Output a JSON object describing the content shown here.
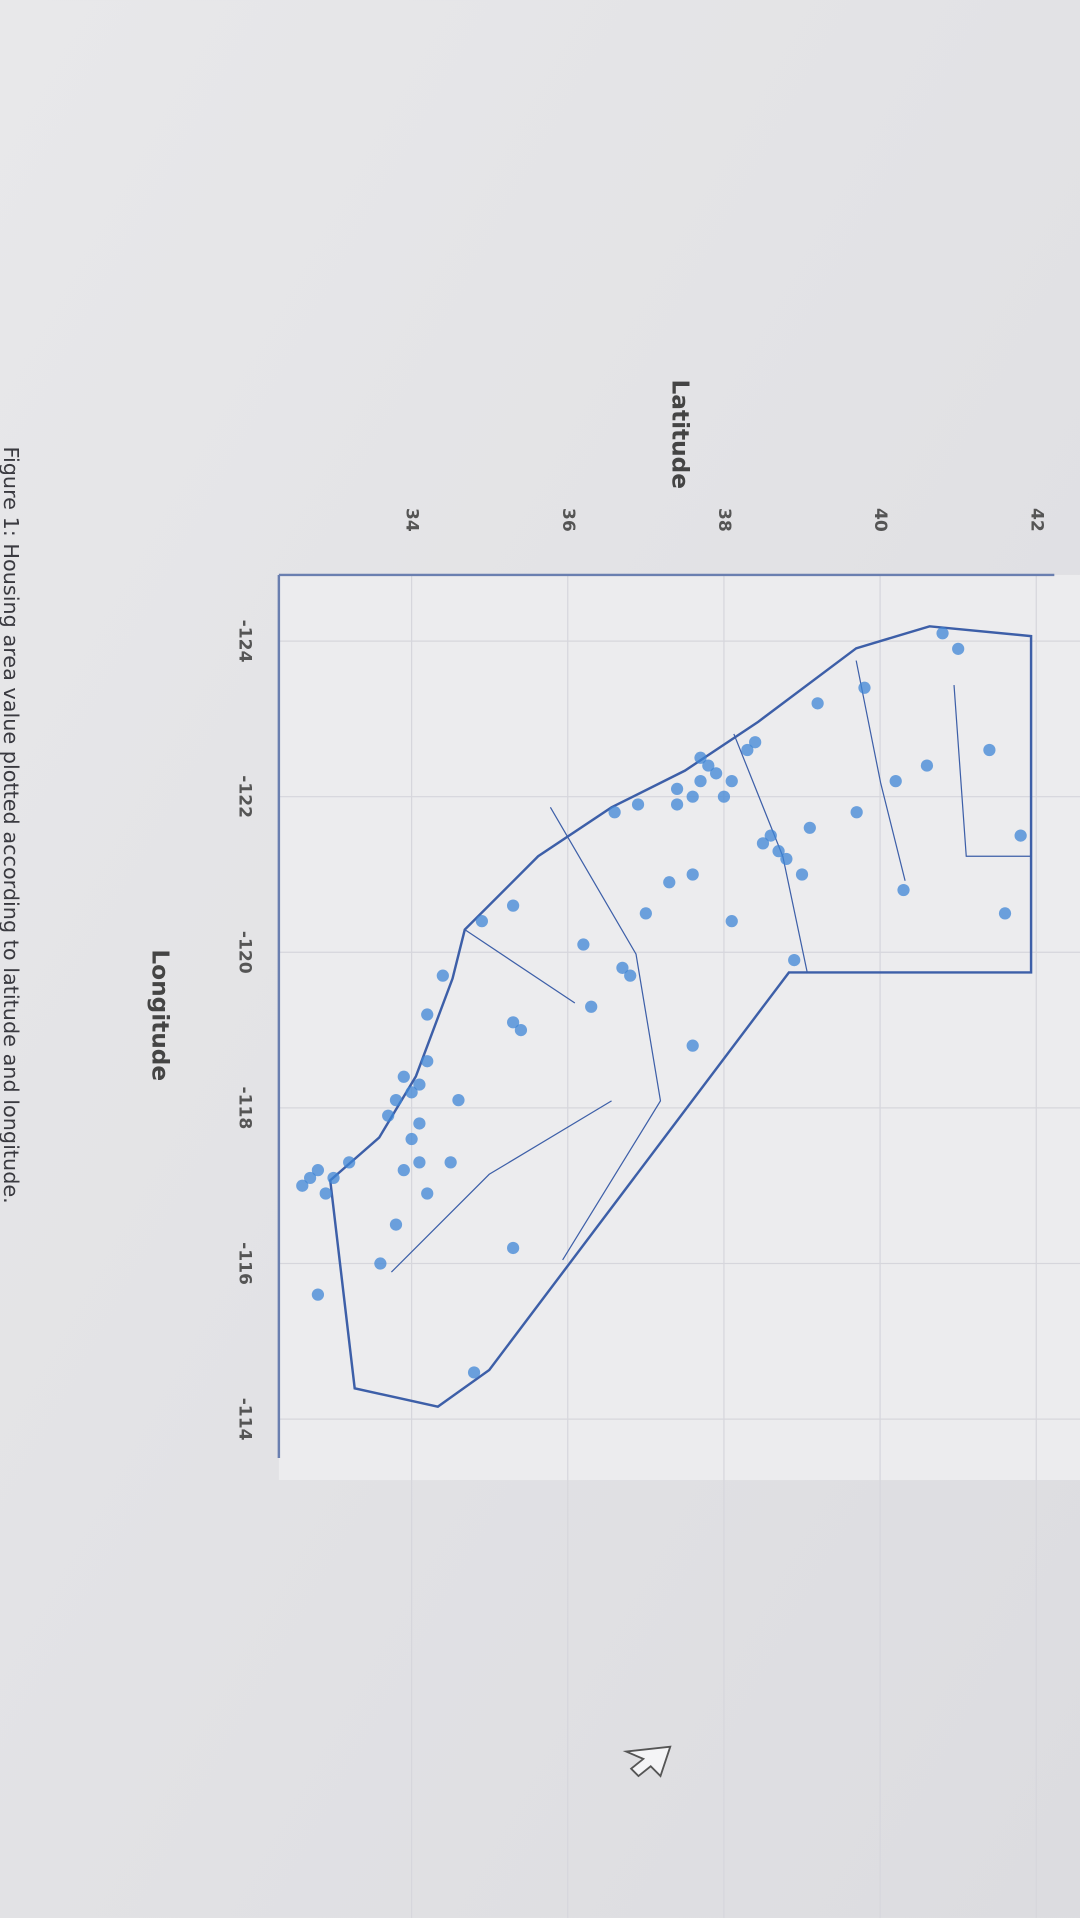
{
  "chart_data": {
    "type": "scatter",
    "title_y": "Latitude",
    "title_x": "Longitude",
    "x": [
      -122.4,
      -122.3,
      -122.2,
      -122.0,
      -121.9,
      -122.1,
      -122.5,
      -122.0,
      -122.2,
      -122.6,
      -122.7,
      -121.5,
      -121.3,
      -121.4,
      -121.2,
      -121.0,
      -121.6,
      -121.8,
      -122.2,
      -122.4,
      -123.9,
      -124.1,
      -122.6,
      -120.5,
      -121.5,
      -123.2,
      -123.4,
      -120.8,
      -121.0,
      -120.9,
      -120.5,
      -119.8,
      -119.7,
      -119.3,
      -119.0,
      -119.1,
      -120.6,
      -120.4,
      -121.8,
      -121.9,
      -120.1,
      -118.8,
      -119.9,
      -120.4,
      -118.2,
      -118.3,
      -118.4,
      -118.1,
      -117.9,
      -117.8,
      -117.6,
      -117.3,
      -117.2,
      -118.6,
      -119.2,
      -119.7,
      -118.1,
      -117.3,
      -116.5,
      -116.9,
      -115.6,
      -116.0,
      -114.6,
      -116.2,
      -117.1,
      -117.2,
      -117.0,
      -117.3,
      -116.9,
      -117.1
    ],
    "values": [
      37.8,
      37.9,
      37.7,
      37.6,
      37.4,
      37.4,
      37.7,
      38.0,
      38.1,
      38.3,
      38.4,
      38.6,
      38.7,
      38.5,
      38.8,
      39.0,
      39.1,
      39.7,
      40.2,
      40.6,
      41.0,
      40.8,
      41.4,
      41.6,
      41.8,
      39.2,
      39.8,
      40.3,
      37.6,
      37.3,
      37.0,
      36.7,
      36.8,
      36.3,
      35.4,
      35.3,
      35.3,
      34.9,
      36.6,
      36.9,
      36.2,
      37.6,
      38.9,
      38.1,
      34.0,
      34.1,
      33.9,
      33.8,
      33.7,
      34.1,
      34.0,
      34.1,
      33.9,
      34.2,
      34.2,
      34.4,
      34.6,
      34.5,
      33.8,
      34.2,
      32.8,
      33.6,
      34.8,
      35.3,
      32.7,
      32.8,
      32.6,
      33.2,
      32.9,
      33.0
    ],
    "color": "#3f86d6",
    "xlim": [
      -124.85,
      -113.5
    ],
    "ylim": [
      32.3,
      42.2
    ],
    "xticks": [
      -124,
      -122,
      -120,
      -118,
      -116,
      -114
    ],
    "yticks": [
      34,
      36,
      38,
      40,
      42
    ],
    "grid": true
  },
  "caption": "Figure 1: Housing area value plotted according to latitude and longitude."
}
